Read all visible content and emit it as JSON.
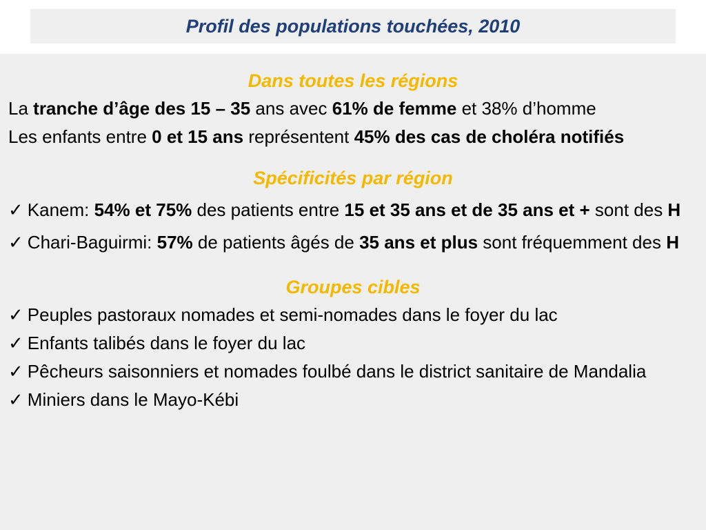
{
  "header": {
    "title": "Profil des populations touchées, 2010"
  },
  "sections": {
    "all_regions": {
      "heading": "Dans toutes les régions",
      "line1": {
        "t1": "La ",
        "b1": "tranche d’âge des 15 – 35",
        "t2": " ans avec ",
        "b2": "61% de femme",
        "t3": " et 38% d’homme"
      },
      "line2": {
        "t1": "Les enfants entre ",
        "b1": "0 et 15 ans",
        "t2": " représentent ",
        "b2": "45% des cas de choléra notifiés"
      }
    },
    "by_region": {
      "heading": "Spécificités par région",
      "item1": {
        "t1": "Kanem: ",
        "b1": "54% et 75%",
        "t2": " des patients entre ",
        "b2": "15 et 35 ans et de 35 ans et +",
        "t3": " sont des ",
        "b3": "H"
      },
      "item2": {
        "t1": "Chari-Baguirmi: ",
        "b1": "57%",
        "t2": " de patients âgés de ",
        "b2": "35 ans et plus",
        "t3": " sont fréquemment des ",
        "b3": "H"
      }
    },
    "target_groups": {
      "heading": "Groupes cibles",
      "items": [
        "Peuples pastoraux nomades et semi-nomades dans le foyer du lac",
        "Enfants talibés dans le foyer du lac",
        "Pêcheurs saisonniers et nomades foulbé dans le district sanitaire de Mandalia",
        "Miniers dans le Mayo-Kébi"
      ]
    }
  },
  "icons": {
    "check": "✓"
  }
}
